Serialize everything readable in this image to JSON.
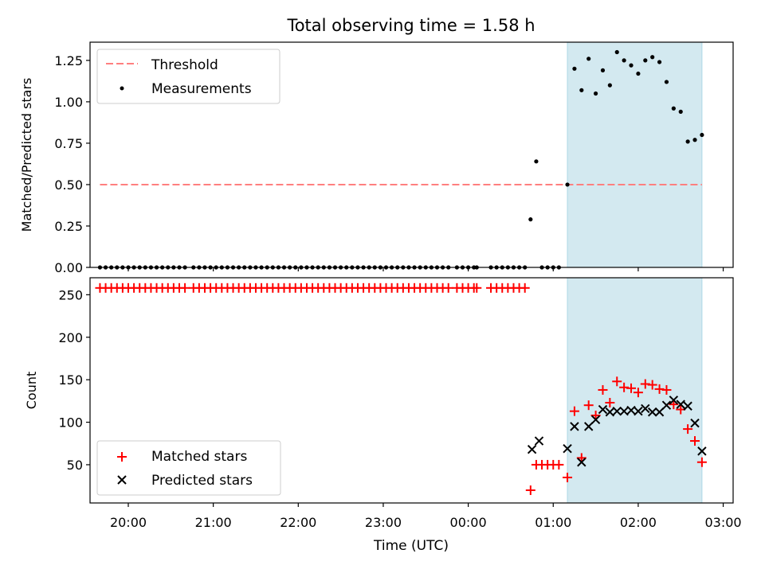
{
  "chart_data": {
    "title": "Total observing time = 1.58 h",
    "xlabel": "Time (UTC)",
    "x_unit": "hours (UTC, clock)",
    "xlim": [
      "19:33",
      "03:07"
    ],
    "xticks": [
      "20:00",
      "21:00",
      "22:00",
      "23:00",
      "00:00",
      "01:00",
      "02:00",
      "03:00"
    ],
    "observing_window": {
      "start": "01:10",
      "end": "02:45",
      "color": "#d3e9f0"
    },
    "panels": [
      {
        "type": "scatter",
        "ylabel": "Matched/Predicted stars",
        "ylim": [
          0,
          1.36
        ],
        "yticks": [
          "0.00",
          "0.25",
          "0.50",
          "0.75",
          "1.00",
          "1.25"
        ],
        "legend_position": "upper-left",
        "threshold": {
          "name": "Threshold",
          "value": 0.5,
          "x_start": "19:40",
          "x_end": "02:45",
          "color": "#ff7f7f"
        },
        "series": [
          {
            "name": "Measurements",
            "color": "#000000",
            "x": [
              "19:40",
              "19:44",
              "19:48",
              "19:52",
              "19:56",
              "20:00",
              "20:04",
              "20:08",
              "20:12",
              "20:16",
              "20:20",
              "20:24",
              "20:28",
              "20:32",
              "20:36",
              "20:40",
              "20:46",
              "20:50",
              "20:54",
              "20:58",
              "21:02",
              "21:06",
              "21:10",
              "21:14",
              "21:18",
              "21:22",
              "21:26",
              "21:30",
              "21:34",
              "21:38",
              "21:42",
              "21:46",
              "21:50",
              "21:54",
              "21:58",
              "22:02",
              "22:06",
              "22:10",
              "22:14",
              "22:18",
              "22:22",
              "22:26",
              "22:30",
              "22:34",
              "22:38",
              "22:42",
              "22:46",
              "22:50",
              "22:54",
              "22:58",
              "23:02",
              "23:06",
              "23:10",
              "23:14",
              "23:18",
              "23:22",
              "23:26",
              "23:30",
              "23:34",
              "23:38",
              "23:42",
              "23:46",
              "23:52",
              "23:56",
              "00:00",
              "00:04",
              "00:06",
              "00:16",
              "00:20",
              "00:24",
              "00:28",
              "00:32",
              "00:36",
              "00:40",
              "00:44",
              "00:48",
              "00:52",
              "00:56",
              "01:00",
              "01:04",
              "01:10",
              "01:15",
              "01:20",
              "01:25",
              "01:30",
              "01:35",
              "01:40",
              "01:45",
              "01:50",
              "01:55",
              "02:00",
              "02:05",
              "02:10",
              "02:15",
              "02:20",
              "02:25",
              "02:30",
              "02:35",
              "02:40",
              "02:45"
            ],
            "y": [
              0,
              0,
              0,
              0,
              0,
              0,
              0,
              0,
              0,
              0,
              0,
              0,
              0,
              0,
              0,
              0,
              0,
              0,
              0,
              0,
              0,
              0,
              0,
              0,
              0,
              0,
              0,
              0,
              0,
              0,
              0,
              0,
              0,
              0,
              0,
              0,
              0,
              0,
              0,
              0,
              0,
              0,
              0,
              0,
              0,
              0,
              0,
              0,
              0,
              0,
              0,
              0,
              0,
              0,
              0,
              0,
              0,
              0,
              0,
              0,
              0,
              0,
              0,
              0,
              0,
              0,
              0,
              0,
              0,
              0,
              0,
              0,
              0,
              0,
              0.29,
              0.64,
              0,
              0,
              0,
              0,
              0.5,
              1.2,
              1.07,
              1.26,
              1.05,
              1.19,
              1.1,
              1.3,
              1.25,
              1.22,
              1.17,
              1.25,
              1.27,
              1.24,
              1.12,
              0.96,
              0.94,
              0.76,
              0.77,
              0.8
            ]
          }
        ]
      },
      {
        "type": "scatter",
        "ylabel": "Count",
        "ylim": [
          5,
          270
        ],
        "yticks": [
          "50",
          "100",
          "150",
          "200",
          "250"
        ],
        "legend_position": "lower-left",
        "series": [
          {
            "name": "Matched stars",
            "marker": "+",
            "color": "#ff0000",
            "x": [
              "19:40",
              "19:44",
              "19:48",
              "19:52",
              "19:56",
              "20:00",
              "20:04",
              "20:08",
              "20:12",
              "20:16",
              "20:20",
              "20:24",
              "20:28",
              "20:32",
              "20:36",
              "20:40",
              "20:46",
              "20:50",
              "20:54",
              "20:58",
              "21:02",
              "21:06",
              "21:10",
              "21:14",
              "21:18",
              "21:22",
              "21:26",
              "21:30",
              "21:34",
              "21:38",
              "21:42",
              "21:46",
              "21:50",
              "21:54",
              "21:58",
              "22:02",
              "22:06",
              "22:10",
              "22:14",
              "22:18",
              "22:22",
              "22:26",
              "22:30",
              "22:34",
              "22:38",
              "22:42",
              "22:46",
              "22:50",
              "22:54",
              "22:58",
              "23:02",
              "23:06",
              "23:10",
              "23:14",
              "23:18",
              "23:22",
              "23:26",
              "23:30",
              "23:34",
              "23:38",
              "23:42",
              "23:46",
              "23:52",
              "23:56",
              "00:00",
              "00:04",
              "00:06",
              "00:16",
              "00:20",
              "00:24",
              "00:28",
              "00:32",
              "00:36",
              "00:40",
              "00:44",
              "00:48",
              "00:52",
              "00:56",
              "01:00",
              "01:04",
              "01:10",
              "01:15",
              "01:20",
              "01:25",
              "01:30",
              "01:35",
              "01:40",
              "01:45",
              "01:50",
              "01:55",
              "02:00",
              "02:05",
              "02:10",
              "02:15",
              "02:20",
              "02:25",
              "02:30",
              "02:35",
              "02:40",
              "02:45"
            ],
            "y": [
              258,
              258,
              258,
              258,
              258,
              258,
              258,
              258,
              258,
              258,
              258,
              258,
              258,
              258,
              258,
              258,
              258,
              258,
              258,
              258,
              258,
              258,
              258,
              258,
              258,
              258,
              258,
              258,
              258,
              258,
              258,
              258,
              258,
              258,
              258,
              258,
              258,
              258,
              258,
              258,
              258,
              258,
              258,
              258,
              258,
              258,
              258,
              258,
              258,
              258,
              258,
              258,
              258,
              258,
              258,
              258,
              258,
              258,
              258,
              258,
              258,
              258,
              258,
              258,
              258,
              258,
              258,
              258,
              258,
              258,
              258,
              258,
              258,
              258,
              20,
              50,
              50,
              50,
              50,
              50,
              35,
              113,
              58,
              120,
              108,
              138,
              123,
              148,
              141,
              140,
              135,
              145,
              144,
              139,
              138,
              121,
              115,
              92,
              78,
              53
            ]
          },
          {
            "name": "Predicted stars",
            "marker": "x",
            "color": "#000000",
            "x": [
              "00:45",
              "00:50",
              "01:10",
              "01:15",
              "01:20",
              "01:25",
              "01:30",
              "01:35",
              "01:40",
              "01:45",
              "01:50",
              "01:55",
              "02:00",
              "02:05",
              "02:10",
              "02:15",
              "02:20",
              "02:25",
              "02:30",
              "02:35",
              "02:40",
              "02:45"
            ],
            "y": [
              68,
              78,
              69,
              95,
              53,
              95,
              103,
              115,
              112,
              113,
              113,
              114,
              113,
              116,
              112,
              112,
              120,
              126,
              121,
              119,
              99,
              66
            ]
          }
        ]
      }
    ]
  }
}
